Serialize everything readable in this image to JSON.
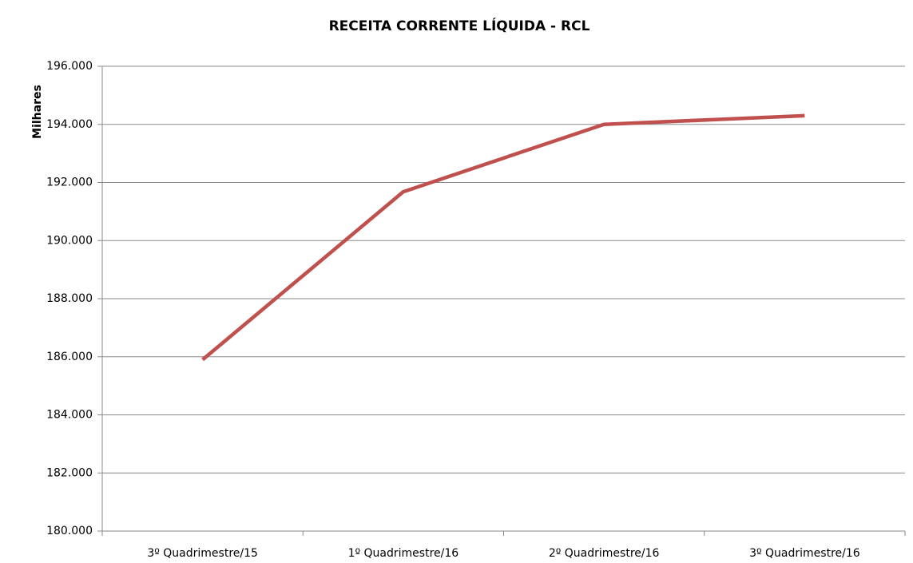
{
  "chart_data": {
    "type": "line",
    "title": "RECEITA CORRENTE LÍQUIDA - RCL",
    "y_label": "Milhares",
    "categories": [
      "3º Quadrimestre/15",
      "1º Quadrimestre/16",
      "2º Quadrimestre/16",
      "3º Quadrimestre/16"
    ],
    "series": [
      {
        "name": "RCL",
        "color": "#c0504d",
        "values": [
          185900,
          191680,
          194000,
          194300
        ]
      }
    ],
    "ylim": [
      180000,
      196000
    ],
    "yticks": [
      {
        "value": 180000,
        "label": "180.000"
      },
      {
        "value": 182000,
        "label": "182.000"
      },
      {
        "value": 184000,
        "label": "184.000"
      },
      {
        "value": 186000,
        "label": "186.000"
      },
      {
        "value": 188000,
        "label": "188.000"
      },
      {
        "value": 190000,
        "label": "190.000"
      },
      {
        "value": 192000,
        "label": "192.000"
      },
      {
        "value": 194000,
        "label": "194.000"
      },
      {
        "value": 196000,
        "label": "196.000"
      }
    ],
    "grid": true
  }
}
